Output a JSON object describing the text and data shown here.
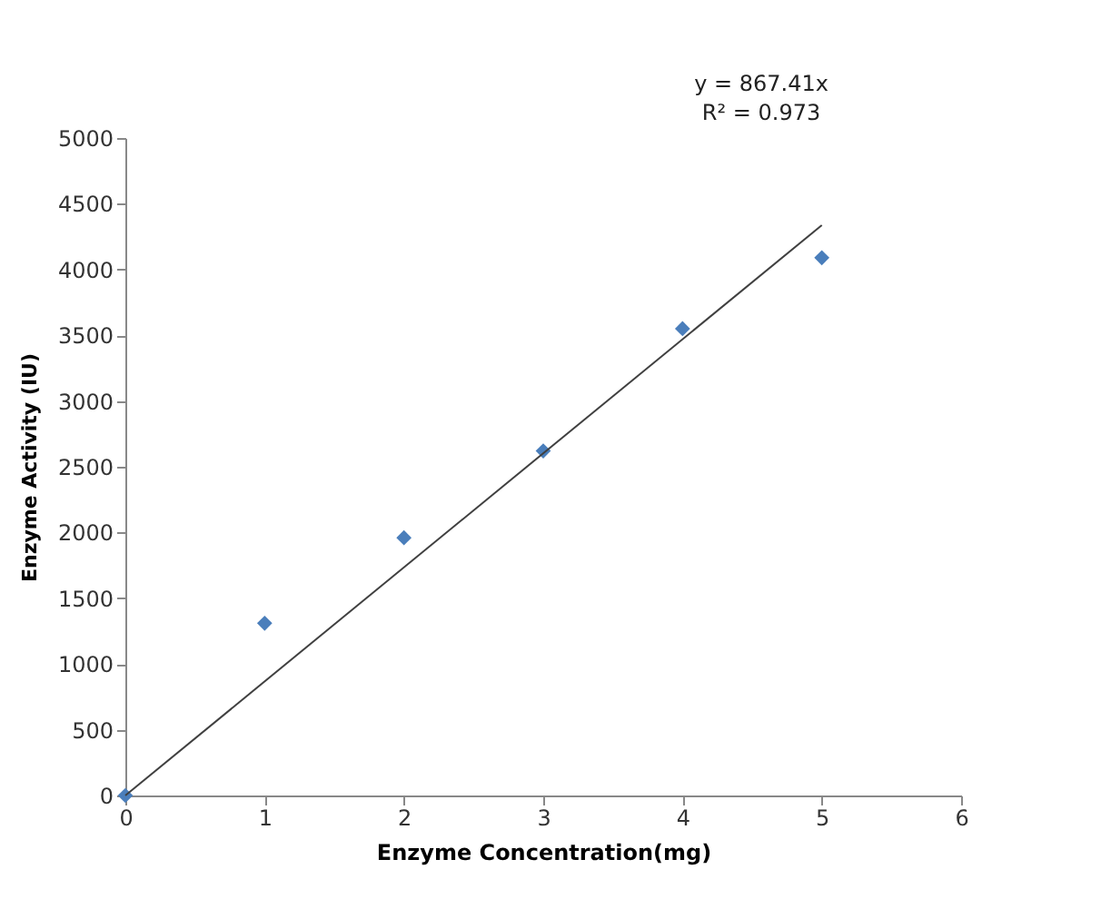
{
  "chart_data": {
    "type": "scatter",
    "xlabel": "Enzyme  Concentration(mg)",
    "ylabel": "Enzyme Activity (IU)",
    "annotations": [
      "y = 867.41x",
      "R² = 0.973"
    ],
    "series": [
      {
        "color": "#4a7ebb",
        "marker": "diamond",
        "x": [
          0,
          1,
          2,
          3,
          4,
          5
        ],
        "values": [
          0,
          1310,
          1960,
          2620,
          3550,
          4090
        ]
      },
      {
        "type": "line",
        "color": "#404040",
        "marker": "none",
        "x": [
          0,
          5
        ],
        "values": [
          0,
          4337
        ]
      }
    ],
    "xlim": [
      0,
      6
    ],
    "xticks": [
      0,
      1,
      2,
      3,
      4,
      5,
      6
    ],
    "ylim": [
      0,
      5000
    ],
    "yticks": [
      0,
      500,
      1000,
      1500,
      2000,
      2500,
      3000,
      3500,
      4000,
      4500,
      5000
    ],
    "grid": false,
    "legend": false
  }
}
